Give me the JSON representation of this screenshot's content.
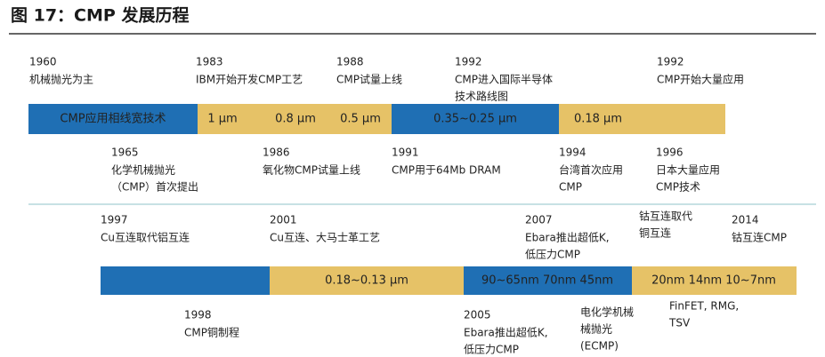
{
  "title": "图 17：CMP 发展历程",
  "timelines": [
    {
      "segments": [
        "CMP应用相线宽技术",
        "1 μm",
        "0.8 μm",
        "0.5 μm",
        "0.35~0.25 μm",
        "0.18 μm"
      ],
      "events_above": [
        {
          "year": "1960",
          "lines": [
            "机械抛光为主"
          ]
        },
        {
          "year": "1983",
          "lines": [
            "IBM开始开发CMP工艺"
          ]
        },
        {
          "year": "1988",
          "lines": [
            "CMP试量上线"
          ]
        },
        {
          "year": "1992",
          "lines": [
            "CMP进入国际半导体",
            "技术路线图"
          ]
        },
        {
          "year": "1992",
          "lines": [
            "CMP开始大量应用"
          ]
        }
      ],
      "events_below": [
        {
          "year": "1965",
          "lines": [
            "化学机械抛光",
            "（CMP）首次提出"
          ]
        },
        {
          "year": "1986",
          "lines": [
            "氧化物CMP试量上线"
          ]
        },
        {
          "year": "1991",
          "lines": [
            "CMP用于64Mb DRAM"
          ]
        },
        {
          "year": "1994",
          "lines": [
            "台湾首次应用",
            "CMP"
          ]
        },
        {
          "year": "1996",
          "lines": [
            "日本大量应用",
            "CMP技术"
          ]
        }
      ]
    },
    {
      "segments": [
        "0.18~0.13 μm",
        "90~65nm 70nm 45nm",
        "20nm 14nm 10~7nm"
      ],
      "events_above": [
        {
          "year": "1997",
          "lines": [
            "Cu互连取代铝互连"
          ]
        },
        {
          "year": "2001",
          "lines": [
            "Cu互连、大马士革工艺"
          ]
        },
        {
          "year": "2007",
          "lines": [
            "Ebara推出超低K,",
            "低压力CMP"
          ]
        },
        {
          "lines": [
            "钴互连取代",
            "铜互连"
          ]
        },
        {
          "year": "2014",
          "lines": [
            "钴互连CMP"
          ]
        }
      ],
      "events_below": [
        {
          "year": "1998",
          "lines": [
            "CMP铜制程"
          ]
        },
        {
          "year": "2005",
          "lines": [
            "Ebara推出超低K,",
            "低压力CMP"
          ]
        },
        {
          "lines": [
            "电化学机械",
            "械抛光",
            "(ECMP)"
          ]
        },
        {
          "lines": [
            "FinFET, RMG,",
            "TSV"
          ]
        }
      ]
    }
  ]
}
